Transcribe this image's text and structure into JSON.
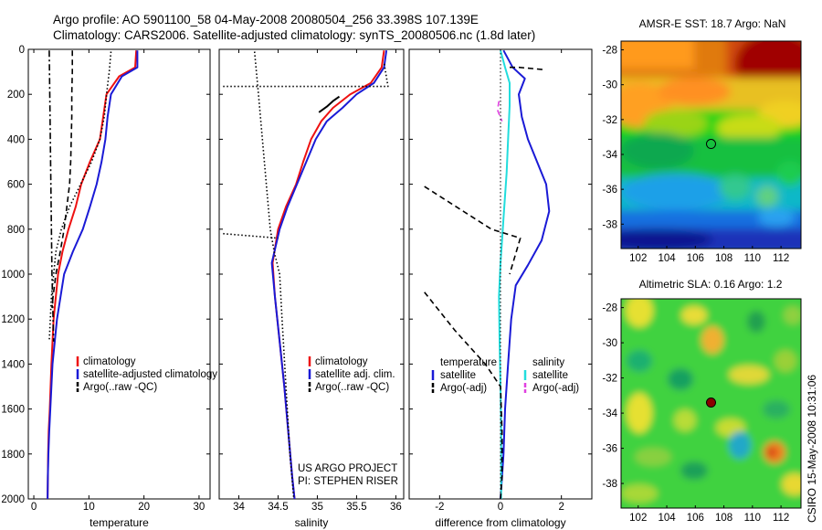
{
  "header": {
    "line1": "Argo profile: AO 5901100_58 04-May-2008 20080504_256 33.398S 107.139E",
    "line2": "Climatology: CARS2006. Satellite-adjusted climatology: synTS_20080506.nc (1.8d later)"
  },
  "side_label": "CSIRO 15-May-2008 10:31:06",
  "colors": {
    "climatology": "#ee1111",
    "satellite": "#1a1ad6",
    "satellite_salinity": "#22dddd",
    "argo": "#000000",
    "argo_salinity": "#e040e0",
    "marker_fill": "#8b0000"
  },
  "chart_data": [
    {
      "id": "temperature",
      "type": "line",
      "xlabel": "temperature",
      "ylabel": "",
      "xlim": [
        -1,
        32
      ],
      "ylim": [
        2000,
        0
      ],
      "y_reversed": true,
      "xticks": [
        0,
        10,
        20,
        30
      ],
      "yticks": [
        0,
        200,
        400,
        600,
        800,
        1000,
        1200,
        1400,
        1600,
        1800,
        2000
      ],
      "legend": {
        "placement": "lower-right",
        "entries": [
          "climatology",
          "satellite-adjusted climatology",
          "Argo(..raw -QC)"
        ]
      },
      "series": [
        {
          "name": "climatology",
          "style": "solid",
          "color": "#ee1111",
          "x": [
            18.6,
            18.4,
            15.5,
            13.2,
            12.6,
            12.0,
            10.2,
            8.6,
            7.6,
            6.3,
            5.2,
            4.4,
            3.6,
            3.2,
            2.9,
            2.7,
            2.6,
            2.55,
            2.5
          ],
          "y": [
            5,
            80,
            120,
            200,
            300,
            400,
            500,
            600,
            700,
            800,
            900,
            1000,
            1200,
            1400,
            1600,
            1700,
            1800,
            1900,
            2000
          ]
        },
        {
          "name": "satellite-adjusted climatology",
          "style": "solid",
          "color": "#1a1ad6",
          "x": [
            18.8,
            18.8,
            16.0,
            14.0,
            13.4,
            13.0,
            12.3,
            11.4,
            10.2,
            8.9,
            7.1,
            5.5,
            4.2,
            3.4,
            3.0,
            2.8,
            2.65,
            2.55,
            2.5
          ],
          "y": [
            5,
            80,
            120,
            200,
            300,
            400,
            500,
            600,
            700,
            800,
            900,
            1000,
            1200,
            1400,
            1600,
            1700,
            1800,
            1900,
            2000
          ]
        },
        {
          "name": "Argo temperature (dotted)",
          "style": "dotted",
          "color": "#000000",
          "x": [
            14.0,
            13.7,
            13.3,
            12.8,
            12.0,
            10.5,
            8.5,
            6.5,
            5.0,
            4.0,
            3.2,
            2.8
          ],
          "y": [
            10,
            100,
            180,
            300,
            400,
            500,
            600,
            700,
            800,
            900,
            1100,
            1300
          ]
        },
        {
          "name": "Argo(..raw -QC)",
          "style": "dashdot",
          "color": "#000000",
          "x": [
            2.8,
            2.9,
            3.0,
            3.1,
            3.2,
            3.3,
            3.5,
            3.6
          ],
          "y": [
            5,
            200,
            400,
            600,
            800,
            1000,
            1200,
            1300
          ]
        },
        {
          "name": "Argo dashed",
          "style": "dashed",
          "color": "#000000",
          "x": [
            7.0,
            7.0,
            6.9,
            6.9,
            6.8,
            6.7,
            6.5,
            6.0,
            5.5,
            4.8,
            4.0,
            3.5,
            3.3
          ],
          "y": [
            5,
            100,
            200,
            300,
            400,
            500,
            600,
            700,
            800,
            900,
            1000,
            1100,
            1150
          ]
        }
      ]
    },
    {
      "id": "salinity",
      "type": "line",
      "xlabel": "salinity",
      "ylabel": "",
      "xlim": [
        33.75,
        36.1
      ],
      "ylim": [
        2000,
        0
      ],
      "y_reversed": true,
      "xticks": [
        34,
        34.5,
        35,
        35.5,
        36
      ],
      "xtick_labels": [
        "34",
        "34.5",
        "35",
        "35.5",
        "36"
      ],
      "legend": {
        "placement": "lower-right",
        "entries": [
          "climatology",
          "satellite adj. clim.",
          "Argo(..raw -QC)"
        ]
      },
      "annotation": [
        "US ARGO PROJECT",
        "PI: STEPHEN RISER"
      ],
      "series": [
        {
          "name": "climatology",
          "style": "solid",
          "color": "#ee1111",
          "x": [
            35.85,
            35.82,
            35.68,
            35.42,
            35.2,
            35.05,
            34.92,
            34.82,
            34.73,
            34.6,
            34.5,
            34.43,
            34.46,
            34.52,
            34.58,
            34.63,
            34.68,
            34.71
          ],
          "y": [
            5,
            80,
            150,
            200,
            260,
            320,
            400,
            500,
            600,
            700,
            800,
            950,
            1100,
            1300,
            1500,
            1700,
            1900,
            2000
          ]
        },
        {
          "name": "satellite adj. clim.",
          "style": "solid",
          "color": "#1a1ad6",
          "x": [
            35.88,
            35.85,
            35.72,
            35.5,
            35.32,
            35.12,
            34.98,
            34.86,
            34.74,
            34.62,
            34.52,
            34.42,
            34.46,
            34.52,
            34.58,
            34.63,
            34.68,
            34.71
          ],
          "y": [
            5,
            80,
            150,
            200,
            260,
            320,
            400,
            500,
            600,
            700,
            800,
            950,
            1100,
            1300,
            1500,
            1700,
            1900,
            2000
          ]
        },
        {
          "name": "Argo(..raw -QC)",
          "style": "solid",
          "color": "#000000",
          "x": [
            35.28,
            35.2,
            35.12,
            35.02
          ],
          "y": [
            210,
            230,
            255,
            280
          ]
        },
        {
          "name": "Argo salinity (dotted)",
          "style": "dotted",
          "color": "#000000",
          "x": [
            34.2,
            34.25,
            34.3,
            34.35,
            34.4,
            34.45,
            34.52,
            34.55,
            34.6,
            34.65,
            34.7
          ],
          "y": [
            10,
            200,
            400,
            600,
            800,
            900,
            1000,
            1200,
            1500,
            1800,
            2000
          ]
        },
        {
          "name": "Argo salinity spike 1",
          "style": "dotted",
          "color": "#000000",
          "x": [
            33.8,
            35.9,
            35.85
          ],
          "y": [
            165,
            165,
            60
          ]
        },
        {
          "name": "Argo salinity spike 2",
          "style": "dotted",
          "color": "#000000",
          "x": [
            33.8,
            34.5
          ],
          "y": [
            820,
            840
          ]
        }
      ]
    },
    {
      "id": "difference",
      "type": "line",
      "xlabel": "difference from climatology",
      "ylabel": "",
      "xlim": [
        -3,
        3
      ],
      "ylim": [
        2000,
        0
      ],
      "y_reversed": true,
      "xticks": [
        -2,
        0,
        2
      ],
      "legend": {
        "placement": "lower",
        "headers": [
          "temperature",
          "salinity"
        ],
        "temperature_entries": [
          "satellite",
          "Argo(-adj)"
        ],
        "salinity_entries": [
          "satellite",
          "Argo(-adj)"
        ]
      },
      "series": [
        {
          "name": "temperature satellite",
          "style": "solid",
          "color": "#1a1ad6",
          "x": [
            0.1,
            0.4,
            0.8,
            0.6,
            0.7,
            0.9,
            1.2,
            1.5,
            1.6,
            1.35,
            0.9,
            0.5,
            0.35,
            0.25,
            0.15,
            0.1,
            0.05,
            0.0
          ],
          "y": [
            5,
            80,
            130,
            200,
            300,
            400,
            500,
            600,
            720,
            850,
            960,
            1050,
            1200,
            1400,
            1600,
            1800,
            1900,
            2000
          ]
        },
        {
          "name": "salinity satellite",
          "style": "solid",
          "color": "#22dddd",
          "x": [
            0.0,
            0.15,
            0.3,
            0.3,
            0.25,
            0.2,
            0.15,
            0.1,
            0.05,
            0.0,
            -0.05,
            -0.03,
            0.0,
            0.02,
            0.02,
            0.02,
            0.02
          ],
          "y": [
            5,
            80,
            150,
            250,
            400,
            550,
            650,
            750,
            850,
            950,
            1100,
            1300,
            1500,
            1700,
            1800,
            1900,
            2000
          ]
        },
        {
          "name": "temperature Argo(-adj) 1",
          "style": "dashed",
          "color": "#000000",
          "x": [
            0.3,
            0.6,
            1.4
          ],
          "y": [
            80,
            80,
            90
          ]
        },
        {
          "name": "temperature Argo(-adj) 2",
          "style": "dashed",
          "color": "#000000",
          "x": [
            -2.5,
            -0.3,
            0.65,
            0.3
          ],
          "y": [
            610,
            800,
            840,
            1000
          ]
        },
        {
          "name": "temperature Argo(-adj) 3",
          "style": "dashed",
          "color": "#000000",
          "x": [
            -2.5,
            -1.5,
            -0.5,
            0.0,
            0.05,
            0.05,
            0.0
          ],
          "y": [
            1080,
            1250,
            1400,
            1500,
            1700,
            1900,
            2000
          ]
        },
        {
          "name": "salinity Argo(-adj)",
          "style": "dashed",
          "color": "#e040e0",
          "x": [
            -0.05,
            -0.1,
            0.05
          ],
          "y": [
            230,
            270,
            320
          ]
        },
        {
          "name": "zero line",
          "style": "dotted",
          "color": "#000000",
          "x": [
            0,
            0
          ],
          "y": [
            0,
            2000
          ]
        }
      ]
    },
    {
      "id": "amsr-sst-map",
      "type": "heatmap",
      "title": "AMSR-E SST: 18.7 Argo: NaN",
      "xticks": [
        102,
        104,
        106,
        108,
        110,
        112
      ],
      "yticks": [
        -28,
        -30,
        -32,
        -34,
        -36,
        -38
      ],
      "xlim": [
        100.8,
        113.4
      ],
      "ylim": [
        -39.4,
        -27.5
      ],
      "marker": {
        "lon": 107.1,
        "lat": -33.4,
        "filled": false
      },
      "colormap": "jet",
      "description_grid": "warm north (red), cooling southward through yellow and green to blue/dark blue in south"
    },
    {
      "id": "altimetric-sla-map",
      "type": "heatmap",
      "title": "Altimetric SLA: 0.16 Argo: 1.2",
      "xticks": [
        102,
        104,
        106,
        108,
        110,
        112
      ],
      "yticks": [
        -28,
        -30,
        -32,
        -34,
        -36,
        -38
      ],
      "xlim": [
        100.8,
        113.4
      ],
      "ylim": [
        -39.4,
        -27.5
      ],
      "marker": {
        "lon": 107.1,
        "lat": -33.4,
        "filled": true
      },
      "colormap": "jet",
      "description_grid": "mostly green with scattered yellow/orange and cyan blobs"
    }
  ]
}
